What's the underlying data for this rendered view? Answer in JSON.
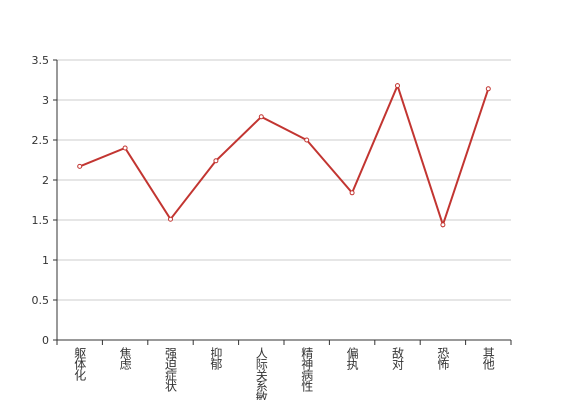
{
  "chart_data": {
    "type": "line",
    "categories": [
      "躯体化",
      "焦虑",
      "强迫症状",
      "抑郁",
      "人际关系敏感",
      "精神病性",
      "偏执",
      "敌对",
      "恐怖",
      "其他"
    ],
    "values": [
      2.17,
      2.4,
      1.51,
      2.24,
      2.79,
      2.5,
      1.84,
      3.18,
      1.44,
      3.14
    ],
    "color": "#c23531",
    "ylim": [
      0,
      3.5
    ],
    "yticks": [
      0,
      0.5,
      1,
      1.5,
      2,
      2.5,
      3,
      3.5
    ],
    "grid": true
  }
}
